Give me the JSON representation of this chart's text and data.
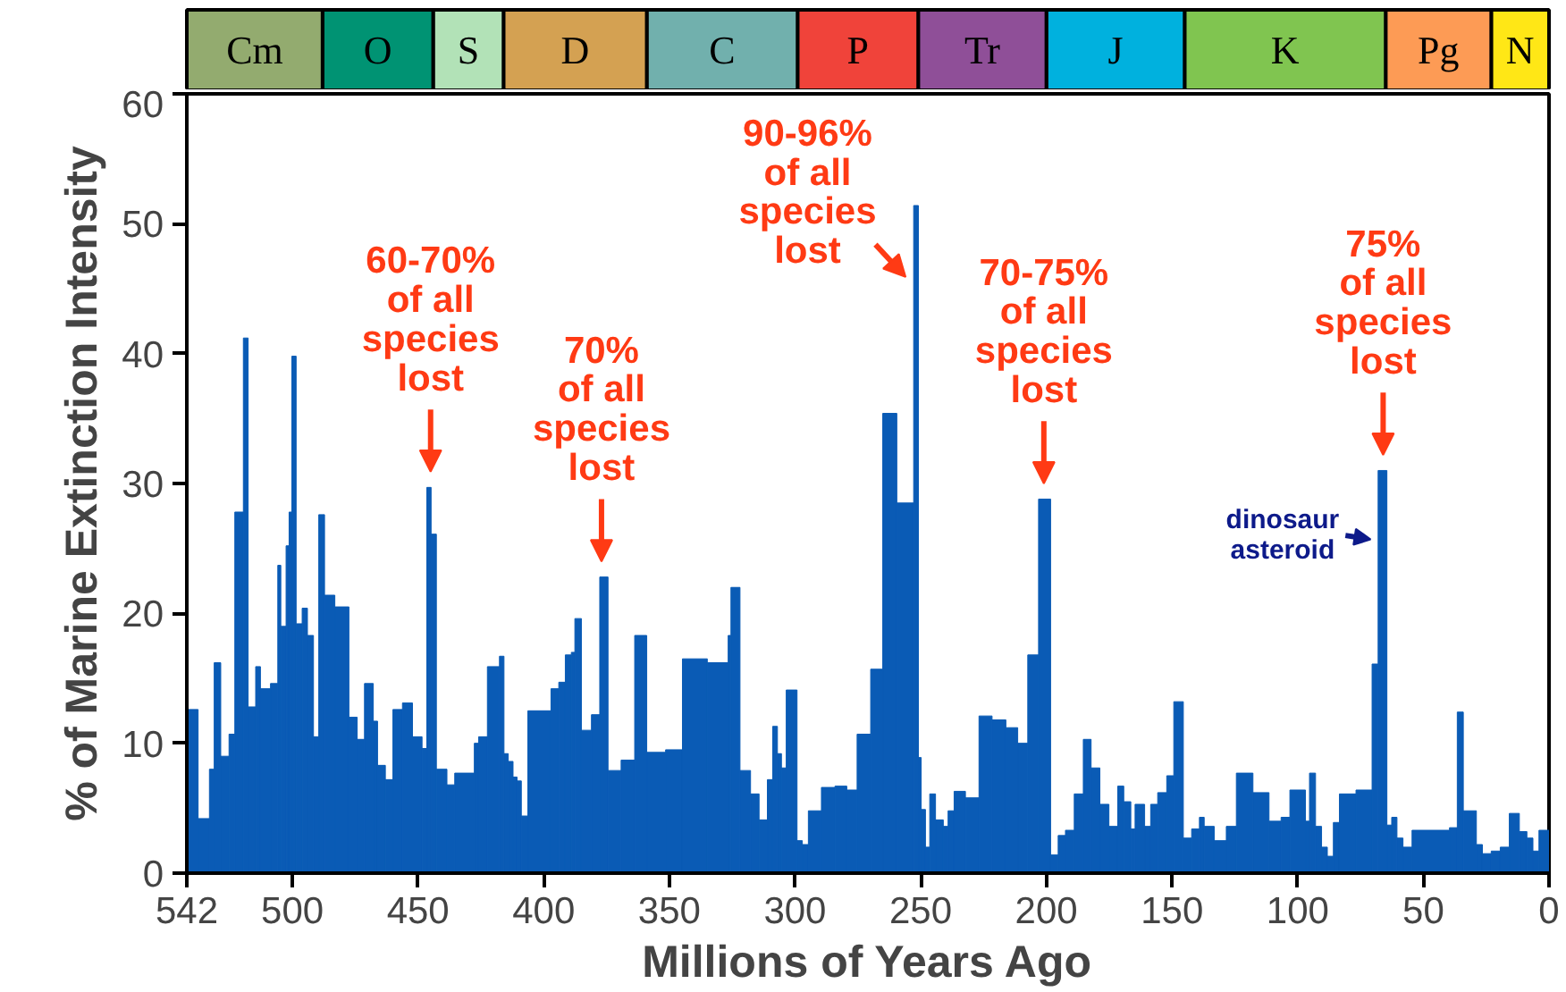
{
  "chart_data": [
    {
      "type": "bar",
      "orientation": "horizontal",
      "stacked": true,
      "categories": [
        null
      ],
      "xlim": [
        542,
        0
      ],
      "tick_labels": false,
      "series": [
        {
          "name": "N",
          "color": "#ffe716",
          "values": [
            23
          ]
        },
        {
          "name": "Pg",
          "color": "#fd9b55",
          "values": [
            42
          ]
        },
        {
          "name": "K",
          "color": "#80c550",
          "values": [
            80
          ]
        },
        {
          "name": "J",
          "color": "#00b1de",
          "values": [
            55
          ]
        },
        {
          "name": "Tr",
          "color": "#8f4f98",
          "values": [
            51
          ]
        },
        {
          "name": "P",
          "color": "#f0433a",
          "values": [
            48
          ]
        },
        {
          "name": "C",
          "color": "#71b0ad",
          "values": [
            60
          ]
        },
        {
          "name": "D",
          "color": "#d4a152",
          "values": [
            57
          ]
        },
        {
          "name": "S",
          "color": "#b2e2b7",
          "values": [
            28
          ]
        },
        {
          "name": "O",
          "color": "#009373",
          "values": [
            44
          ]
        },
        {
          "name": "Cm",
          "color": "#93ab6f",
          "values": [
            54
          ]
        }
      ]
    },
    {
      "type": "histogram",
      "xlabel": "Millions of Years Ago",
      "ylabel": "% of Marine Extinction Intensity",
      "color": "#0a5bb5",
      "bins": [
        542,
        537.5,
        533.0,
        531.1,
        528.5,
        525.2,
        522.9,
        519.5,
        517.6,
        514.6,
        512.7,
        508.7,
        505.8,
        504.6,
        502.5,
        501.3,
        500.2,
        498.5,
        496.1,
        494.0,
        491.6,
        489.5,
        487.2,
        483.1,
        477.5,
        474.2,
        471.3,
        467.8,
        466.1,
        463.0,
        460.0,
        456.2,
        452.2,
        448.4,
        446.5,
        444.8,
        442.7,
        438.5,
        435.4,
        427.6,
        425.9,
        422.4,
        417.6,
        415.8,
        414.1,
        412.2,
        410.6,
        408.9,
        406.3,
        397.1,
        394.0,
        391.4,
        389.0,
        387.6,
        385.0,
        381.0,
        377.7,
        374.4,
        369.2,
        363.8,
        359.0,
        351.5,
        344.8,
        334.9,
        326.6,
        325.5,
        321.9,
        317.7,
        314.3,
        311.0,
        308.9,
        307.0,
        305.4,
        303.5,
        299.2,
        297.1,
        294.7,
        289.5,
        284.1,
        279.4,
        275.3,
        269.9,
        265.1,
        259.5,
        252.8,
        250.9,
        249.8,
        248.1,
        246.4,
        244.1,
        241.0,
        239.1,
        236.7,
        232.2,
        226.8,
        221.6,
        216.1,
        211.4,
        207.4,
        203.1,
        198.3,
        195.3,
        192.4,
        188.9,
        185.3,
        182.2,
        178.7,
        175.1,
        171.6,
        169.2,
        166.4,
        164.7,
        160.9,
        158.5,
        155.7,
        152.1,
        149.3,
        145.5,
        142.2,
        139.1,
        137.2,
        133.2,
        128.4,
        124.4,
        117.8,
        111.4,
        106.6,
        103.1,
        96.9,
        95.3,
        92.9,
        90.5,
        88.2,
        85.8,
        83.4,
        76.8,
        70.4,
        68.0,
        64.5,
        62.6,
        60.5,
        58.1,
        54.5,
        39.6,
        36.5,
        34.1,
        28.9,
        26.5,
        23.0,
        19.4,
        15.8,
        11.8,
        8.8,
        6.4,
        4.0,
        0
      ],
      "values": [
        12.6,
        4.2,
        8.0,
        16.2,
        9.0,
        10.7,
        27.8,
        41.2,
        12.8,
        15.9,
        14.2,
        14.6,
        23.7,
        19.0,
        25.2,
        27.8,
        39.8,
        19.2,
        20.4,
        18.3,
        10.5,
        27.6,
        21.4,
        20.5,
        12.0,
        10.3,
        14.6,
        11.7,
        8.3,
        7.2,
        12.6,
        13.1,
        10.5,
        9.6,
        29.7,
        26.1,
        8.0,
        6.8,
        7.7,
        10.0,
        10.5,
        15.9,
        16.7,
        9.2,
        8.6,
        7.4,
        7.1,
        4.4,
        12.5,
        14.2,
        14.7,
        16.8,
        17.0,
        19.6,
        11.0,
        12.2,
        22.8,
        7.9,
        8.7,
        18.3,
        9.3,
        9.5,
        16.5,
        16.2,
        18.3,
        22.0,
        7.9,
        6.1,
        4.1,
        7.2,
        11.3,
        9.2,
        8.1,
        14.1,
        2.5,
        2.2,
        4.8,
        6.6,
        6.7,
        6.4,
        10.7,
        15.7,
        35.4,
        28.5,
        51.4,
        8.9,
        4.9,
        2.0,
        6.1,
        4.1,
        3.6,
        4.8,
        6.3,
        5.8,
        12.1,
        11.8,
        11.2,
        10.0,
        16.8,
        28.8,
        1.4,
        2.9,
        3.3,
        6.1,
        10.3,
        8.1,
        5.3,
        3.6,
        6.7,
        5.5,
        3.4,
        5.3,
        3.6,
        5.3,
        6.2,
        7.5,
        13.2,
        2.7,
        3.4,
        4.3,
        3.6,
        2.5,
        3.6,
        7.7,
        6.2,
        4.0,
        4.3,
        6.4,
        4.0,
        7.7,
        3.6,
        2.0,
        1.3,
        3.9,
        6.1,
        6.4,
        16.1,
        31.0,
        3.7,
        4.3,
        2.7,
        2.0,
        3.3,
        3.5,
        12.4,
        4.8,
        2.2,
        1.5,
        1.7,
        2.0,
        4.6,
        3.2,
        2.7,
        1.7,
        3.3
      ],
      "xlim": [
        542,
        0
      ],
      "ylim": [
        0,
        60
      ],
      "xticks": [
        542,
        500,
        450,
        400,
        350,
        300,
        250,
        200,
        150,
        100,
        50,
        0
      ],
      "yticks": [
        0,
        10,
        20,
        30,
        40,
        50,
        60
      ],
      "grid": false,
      "annotations": [
        {
          "text": "60-70%\nof all\nspecies\nlost",
          "x": 445,
          "y": 29.7
        },
        {
          "text": "70%\nof all\nspecies\nlost",
          "x": 377,
          "y": 22.8
        },
        {
          "text": "90-96%\nof all\nspecies\nlost",
          "x": 252,
          "y": 51.4
        },
        {
          "text": "70-75%\nof all\nspecies\nlost",
          "x": 201,
          "y": 28.8
        },
        {
          "text": "75%\nof all\nspecies\nlost",
          "x": 66,
          "y": 31.0
        },
        {
          "text": "dinosaur\nasteroid",
          "x": 66,
          "y": 26
        }
      ]
    }
  ]
}
